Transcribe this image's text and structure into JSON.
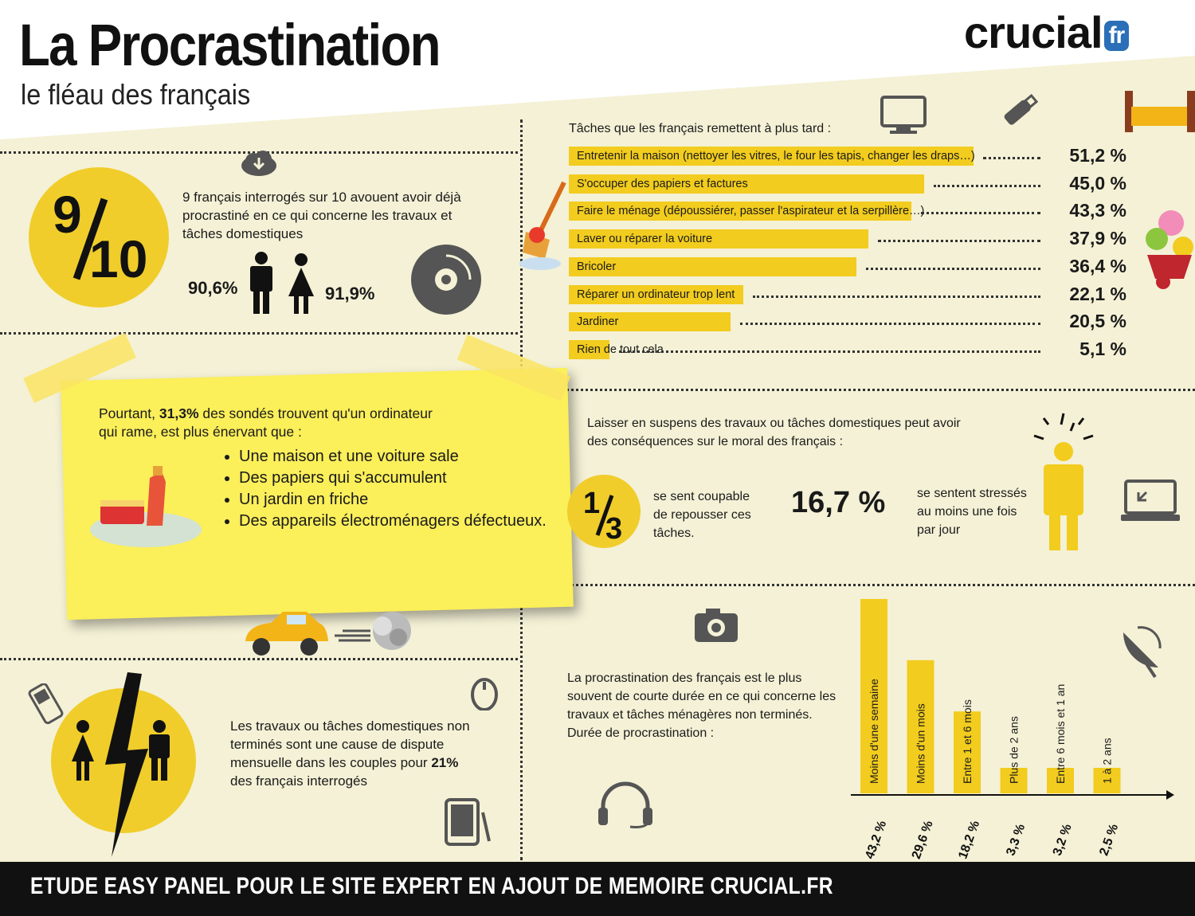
{
  "header": {
    "title": "La Procrastination",
    "subtitle": "le fléau des français",
    "logo_main": "crucial",
    "logo_suffix": "fr"
  },
  "stat_intro": {
    "fraction_num": "9",
    "fraction_den": "10",
    "text": "9 français interrogés sur 10 avouent avoir déjà procrastiné en ce qui concerne les travaux et tâches domestiques",
    "men_pct": "90,6%",
    "women_pct": "91,9%"
  },
  "note": {
    "prefix": "Pourtant, ",
    "highlight": "31,3%",
    "suffix": " des sondés trouvent qu'un ordinateur qui rame, est plus énervant que :",
    "items": [
      "Une maison et une voiture sale",
      "Des papiers qui s'accumulent",
      "Un jardin en friche",
      "Des appareils électroménagers défectueux."
    ]
  },
  "dispute": {
    "text_before": "Les travaux ou tâches domestiques non terminés sont une cause de dispute mensuelle dans les couples pour ",
    "highlight": "21%",
    "text_after": " des français interrogés"
  },
  "moral": {
    "intro": "Laisser en suspens des travaux ou tâches domestiques peut avoir des conséquences sur le moral des français :",
    "frac_num": "1",
    "frac_den": "3",
    "frac_text": "se sent coupable de repousser ces tâches.",
    "stress_pct": "16,7 %",
    "stress_text": "se sentent stressés au moins une fois par jour"
  },
  "duration_text": "La procrastination des français est le plus souvent de courte durée en ce qui concerne les travaux et tâches ménagères non terminés. Durée de procrastination :",
  "footer": "ETUDE EASY PANEL POUR LE SITE EXPERT EN AJOUT DE MEMOIRE CRUCIAL.FR",
  "colors": {
    "accent": "#f2cc1e",
    "background": "#f4f1d6",
    "footer": "#111111"
  },
  "chart_data": [
    {
      "type": "bar",
      "orientation": "horizontal",
      "title": "Tâches que les français remettent à plus tard :",
      "categories": [
        "Entretenir la maison (nettoyer les vitres, le four les tapis, changer les draps…)",
        "S'occuper des papiers et factures",
        "Faire le ménage (dépoussiérer, passer l'aspirateur et la serpillère…)",
        "Laver ou réparer la voiture",
        "Bricoler",
        "Réparer un ordinateur trop lent",
        "Jardiner",
        "Rien de tout cela"
      ],
      "values": [
        51.2,
        45.0,
        43.3,
        37.9,
        36.4,
        22.1,
        20.5,
        5.1
      ],
      "value_labels": [
        "51,2 %",
        "45,0 %",
        "43,3 %",
        "37,9 %",
        "36,4 %",
        "22,1 %",
        "20,5 %",
        "5,1 %"
      ]
    },
    {
      "type": "bar",
      "orientation": "vertical",
      "title": "Durée de procrastination :",
      "categories": [
        "Moins d'une semaine",
        "Moins d'un mois",
        "Entre 1 et 6 mois",
        "Plus de 2 ans",
        "Entre 6 mois et 1 an",
        "1 à 2 ans"
      ],
      "values": [
        43.2,
        29.6,
        18.2,
        3.3,
        3.2,
        2.5
      ],
      "value_labels": [
        "43,2 %",
        "29,6 %",
        "18,2 %",
        "3,3 %",
        "3,2 %",
        "2,5 %"
      ]
    }
  ]
}
